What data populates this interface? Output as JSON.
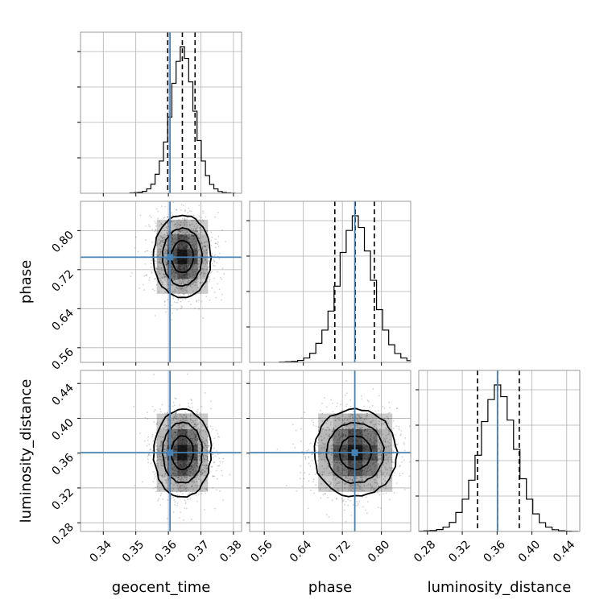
{
  "chart_data": {
    "type": "corner",
    "parameters": [
      {
        "name": "geocent_time",
        "label": "geocent_time",
        "range": [
          0.333,
          0.3825
        ],
        "ticks": [
          0.34,
          0.35,
          0.36,
          0.37,
          0.38
        ],
        "tick_labels": [
          "0.34",
          "0.35",
          "0.36",
          "0.37",
          "0.38"
        ],
        "truth": 0.3605,
        "quantiles": [
          0.3598,
          0.3643,
          0.3682
        ],
        "hist": [
          0.002,
          0.004,
          0.006,
          0.013,
          0.03,
          0.062,
          0.13,
          0.22,
          0.35,
          0.52,
          0.75,
          0.9,
          1.0,
          0.92,
          0.76,
          0.56,
          0.36,
          0.22,
          0.12,
          0.06,
          0.03,
          0.012,
          0.005,
          0.002,
          0.001
        ]
      },
      {
        "name": "phase",
        "label": "phase",
        "range": [
          0.53,
          0.86
        ],
        "ticks": [
          0.56,
          0.64,
          0.72,
          0.8
        ],
        "tick_labels": [
          "0.56",
          "0.64",
          "0.72",
          "0.80"
        ],
        "truth": 0.7455,
        "quantiles": [
          0.7045,
          0.7465,
          0.7855
        ],
        "hist": [
          0.002,
          0.004,
          0.006,
          0.013,
          0.03,
          0.062,
          0.13,
          0.22,
          0.35,
          0.52,
          0.75,
          0.9,
          1.0,
          0.92,
          0.76,
          0.56,
          0.36,
          0.22,
          0.12,
          0.06,
          0.03,
          0.012,
          0.005,
          0.002,
          0.001
        ]
      },
      {
        "name": "luminosity_distance",
        "label": "luminosity_distance",
        "range": [
          0.27,
          0.455
        ],
        "ticks": [
          0.28,
          0.32,
          0.36,
          0.4,
          0.44
        ],
        "tick_labels": [
          "0.28",
          "0.32",
          "0.36",
          "0.40",
          "0.44"
        ],
        "truth": 0.3605,
        "quantiles": [
          0.3375,
          0.3605,
          0.3855
        ],
        "hist": [
          0.002,
          0.004,
          0.006,
          0.013,
          0.03,
          0.062,
          0.13,
          0.22,
          0.35,
          0.52,
          0.75,
          0.9,
          1.0,
          0.92,
          0.76,
          0.56,
          0.36,
          0.22,
          0.12,
          0.06,
          0.03,
          0.012,
          0.005,
          0.002,
          0.001
        ]
      }
    ],
    "truth_color": "#4682b4",
    "quantile_style": "dashed",
    "contour_levels": 3,
    "grid": true
  }
}
